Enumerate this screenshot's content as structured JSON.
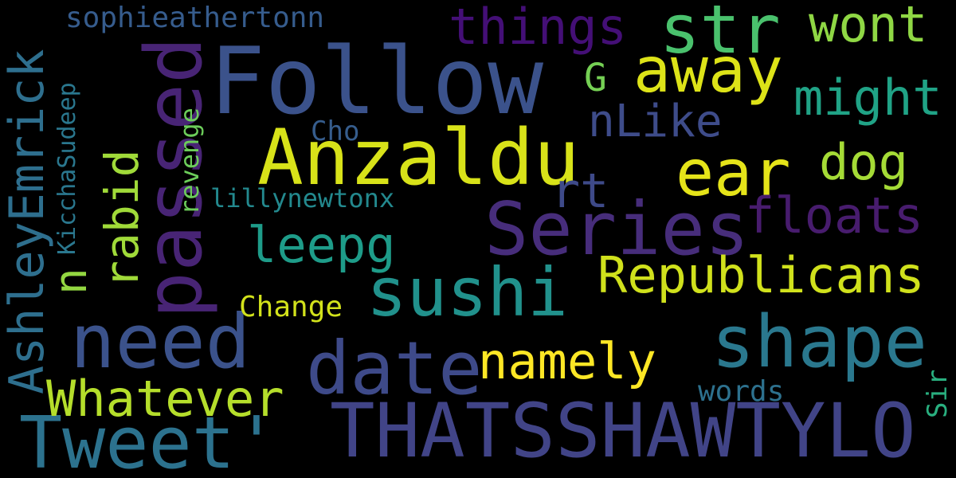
{
  "cloud": {
    "follow": {
      "text": "Follow",
      "color": "#3b528b"
    },
    "thatsshawtylo": {
      "text": "THATSSHAWTYLO",
      "color": "#414487"
    },
    "anzaldu": {
      "text": "Anzaldu",
      "color": "#d8e219"
    },
    "passed": {
      "text": "passed",
      "color": "#482475"
    },
    "tweet": {
      "text": "Tweet'",
      "color": "#2c728e"
    },
    "need": {
      "text": "need",
      "color": "#3b528b"
    },
    "series": {
      "text": "Series",
      "color": "#472d7b"
    },
    "date": {
      "text": "date",
      "color": "#3e4a89"
    },
    "shape": {
      "text": "shape",
      "color": "#2a788e"
    },
    "sushi": {
      "text": "sushi",
      "color": "#21918c"
    },
    "away": {
      "text": "away",
      "color": "#dde318"
    },
    "str": {
      "text": "str",
      "color": "#4ac16d"
    },
    "ear": {
      "text": "ear",
      "color": "#e5e419"
    },
    "ashleyemrick": {
      "text": "AshleyEmrick",
      "color": "#2e6f8e"
    },
    "republicans": {
      "text": "Republicans",
      "color": "#d0e11c"
    },
    "whatever": {
      "text": "Whatever",
      "color": "#b5de2b"
    },
    "namely": {
      "text": "namely",
      "color": "#fde725"
    },
    "things": {
      "text": "things",
      "color": "#440f76"
    },
    "wont": {
      "text": "wont",
      "color": "#8fd744"
    },
    "might": {
      "text": "might",
      "color": "#20a386"
    },
    "floats": {
      "text": "floats",
      "color": "#481c6e"
    },
    "leepg": {
      "text": "leepg",
      "color": "#1e9c89"
    },
    "rabid": {
      "text": "rabid",
      "color": "#a0da39"
    },
    "dog": {
      "text": "dog",
      "color": "#a5db36"
    },
    "nlike": {
      "text": "nLike",
      "color": "#3e4c8a"
    },
    "rt": {
      "text": "rt",
      "color": "#3e4a89"
    },
    "n": {
      "text": "n",
      "color": "#93d741"
    },
    "g": {
      "text": "G",
      "color": "#75d054"
    },
    "sophieathertonn": {
      "text": "sophieathertonn",
      "color": "#365c8d"
    },
    "kicchasudeep": {
      "text": "KicchaSudeep",
      "color": "#2a778e"
    },
    "lillynewtonx": {
      "text": "lillynewtonx",
      "color": "#23898e"
    },
    "revenge": {
      "text": "revenge",
      "color": "#6ccd5a"
    },
    "cho": {
      "text": "Cho",
      "color": "#365d8d"
    },
    "change": {
      "text": "Change",
      "color": "#d2e21b"
    },
    "words": {
      "text": "words",
      "color": "#2d718e"
    },
    "sir": {
      "text": "Sir",
      "color": "#29af7f"
    }
  }
}
